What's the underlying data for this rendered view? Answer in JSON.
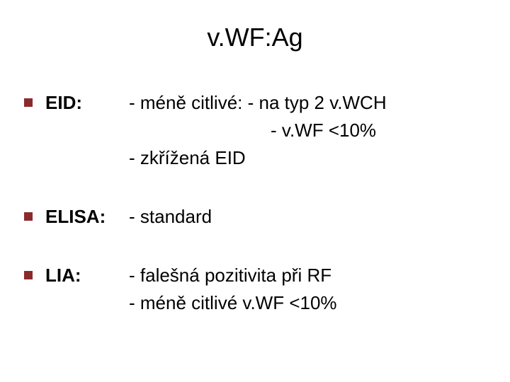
{
  "title": "v.WF:Ag",
  "bullet_color": "#8b2a2a",
  "text_color": "#000000",
  "background_color": "#ffffff",
  "title_fontsize": 36,
  "body_fontsize": 26,
  "items": [
    {
      "label": "EID:",
      "lines": [
        {
          "text": "- méně citlivé: - na typ 2 v.WCH",
          "indent": false
        },
        {
          "text": "- v.WF <10%",
          "indent": true
        },
        {
          "text": "- zkřížená EID",
          "indent": false
        }
      ]
    },
    {
      "label": "ELISA:",
      "lines": [
        {
          "text": "- standard",
          "indent": false
        }
      ]
    },
    {
      "label": "LIA:",
      "lines": [
        {
          "text": "- falešná pozitivita při RF",
          "indent": false
        },
        {
          "text": "- méně citlivé v.WF <10%",
          "indent": false
        }
      ]
    }
  ]
}
